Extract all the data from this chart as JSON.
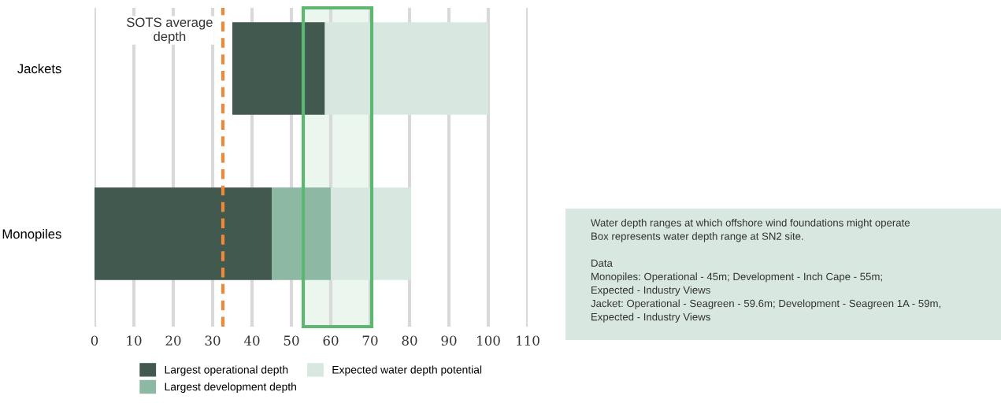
{
  "chart_data": {
    "type": "bar",
    "orientation": "horizontal",
    "categories": [
      "Jackets",
      "Monopiles"
    ],
    "series": [
      {
        "name": "Largest operational depth",
        "color": "#41594f",
        "base": [
          35,
          0
        ],
        "values": [
          23.5,
          45
        ]
      },
      {
        "name": "Largest development depth",
        "color": "#8cb8a4",
        "base": [
          null,
          45
        ],
        "values": [
          null,
          15
        ]
      },
      {
        "name": "Expected water depth potential",
        "color": "#d8e8e0",
        "base": [
          58.5,
          60
        ],
        "values": [
          41.5,
          20.4
        ]
      }
    ],
    "xlim": [
      0,
      110
    ],
    "xticks": [
      0,
      10,
      20,
      30,
      40,
      50,
      60,
      70,
      80,
      90,
      100,
      110
    ],
    "grid": "x",
    "legend": "bottom",
    "ref_lines": [
      {
        "axis": "x",
        "value": 32.6,
        "label": "SOTS average\ndepth",
        "color": "#f0883a",
        "line_style": "dashed"
      }
    ],
    "bands": [
      {
        "axis": "x",
        "from": 53,
        "to": 70.4,
        "color": "#5cb870"
      }
    ],
    "annotations": [
      "Water depth ranges at which offshore wind foundations might operate\nBox represents water depth range at SN2 site.\n\nData\nMonopiles: Operational - 45m; Development - Inch Cape - 55m;\nExpected - Industry Views\nJacket: Operational - Seagreen - 59.6m; Development - Seagreen 1A - 59m,\nExpected - Industry Views"
    ]
  }
}
